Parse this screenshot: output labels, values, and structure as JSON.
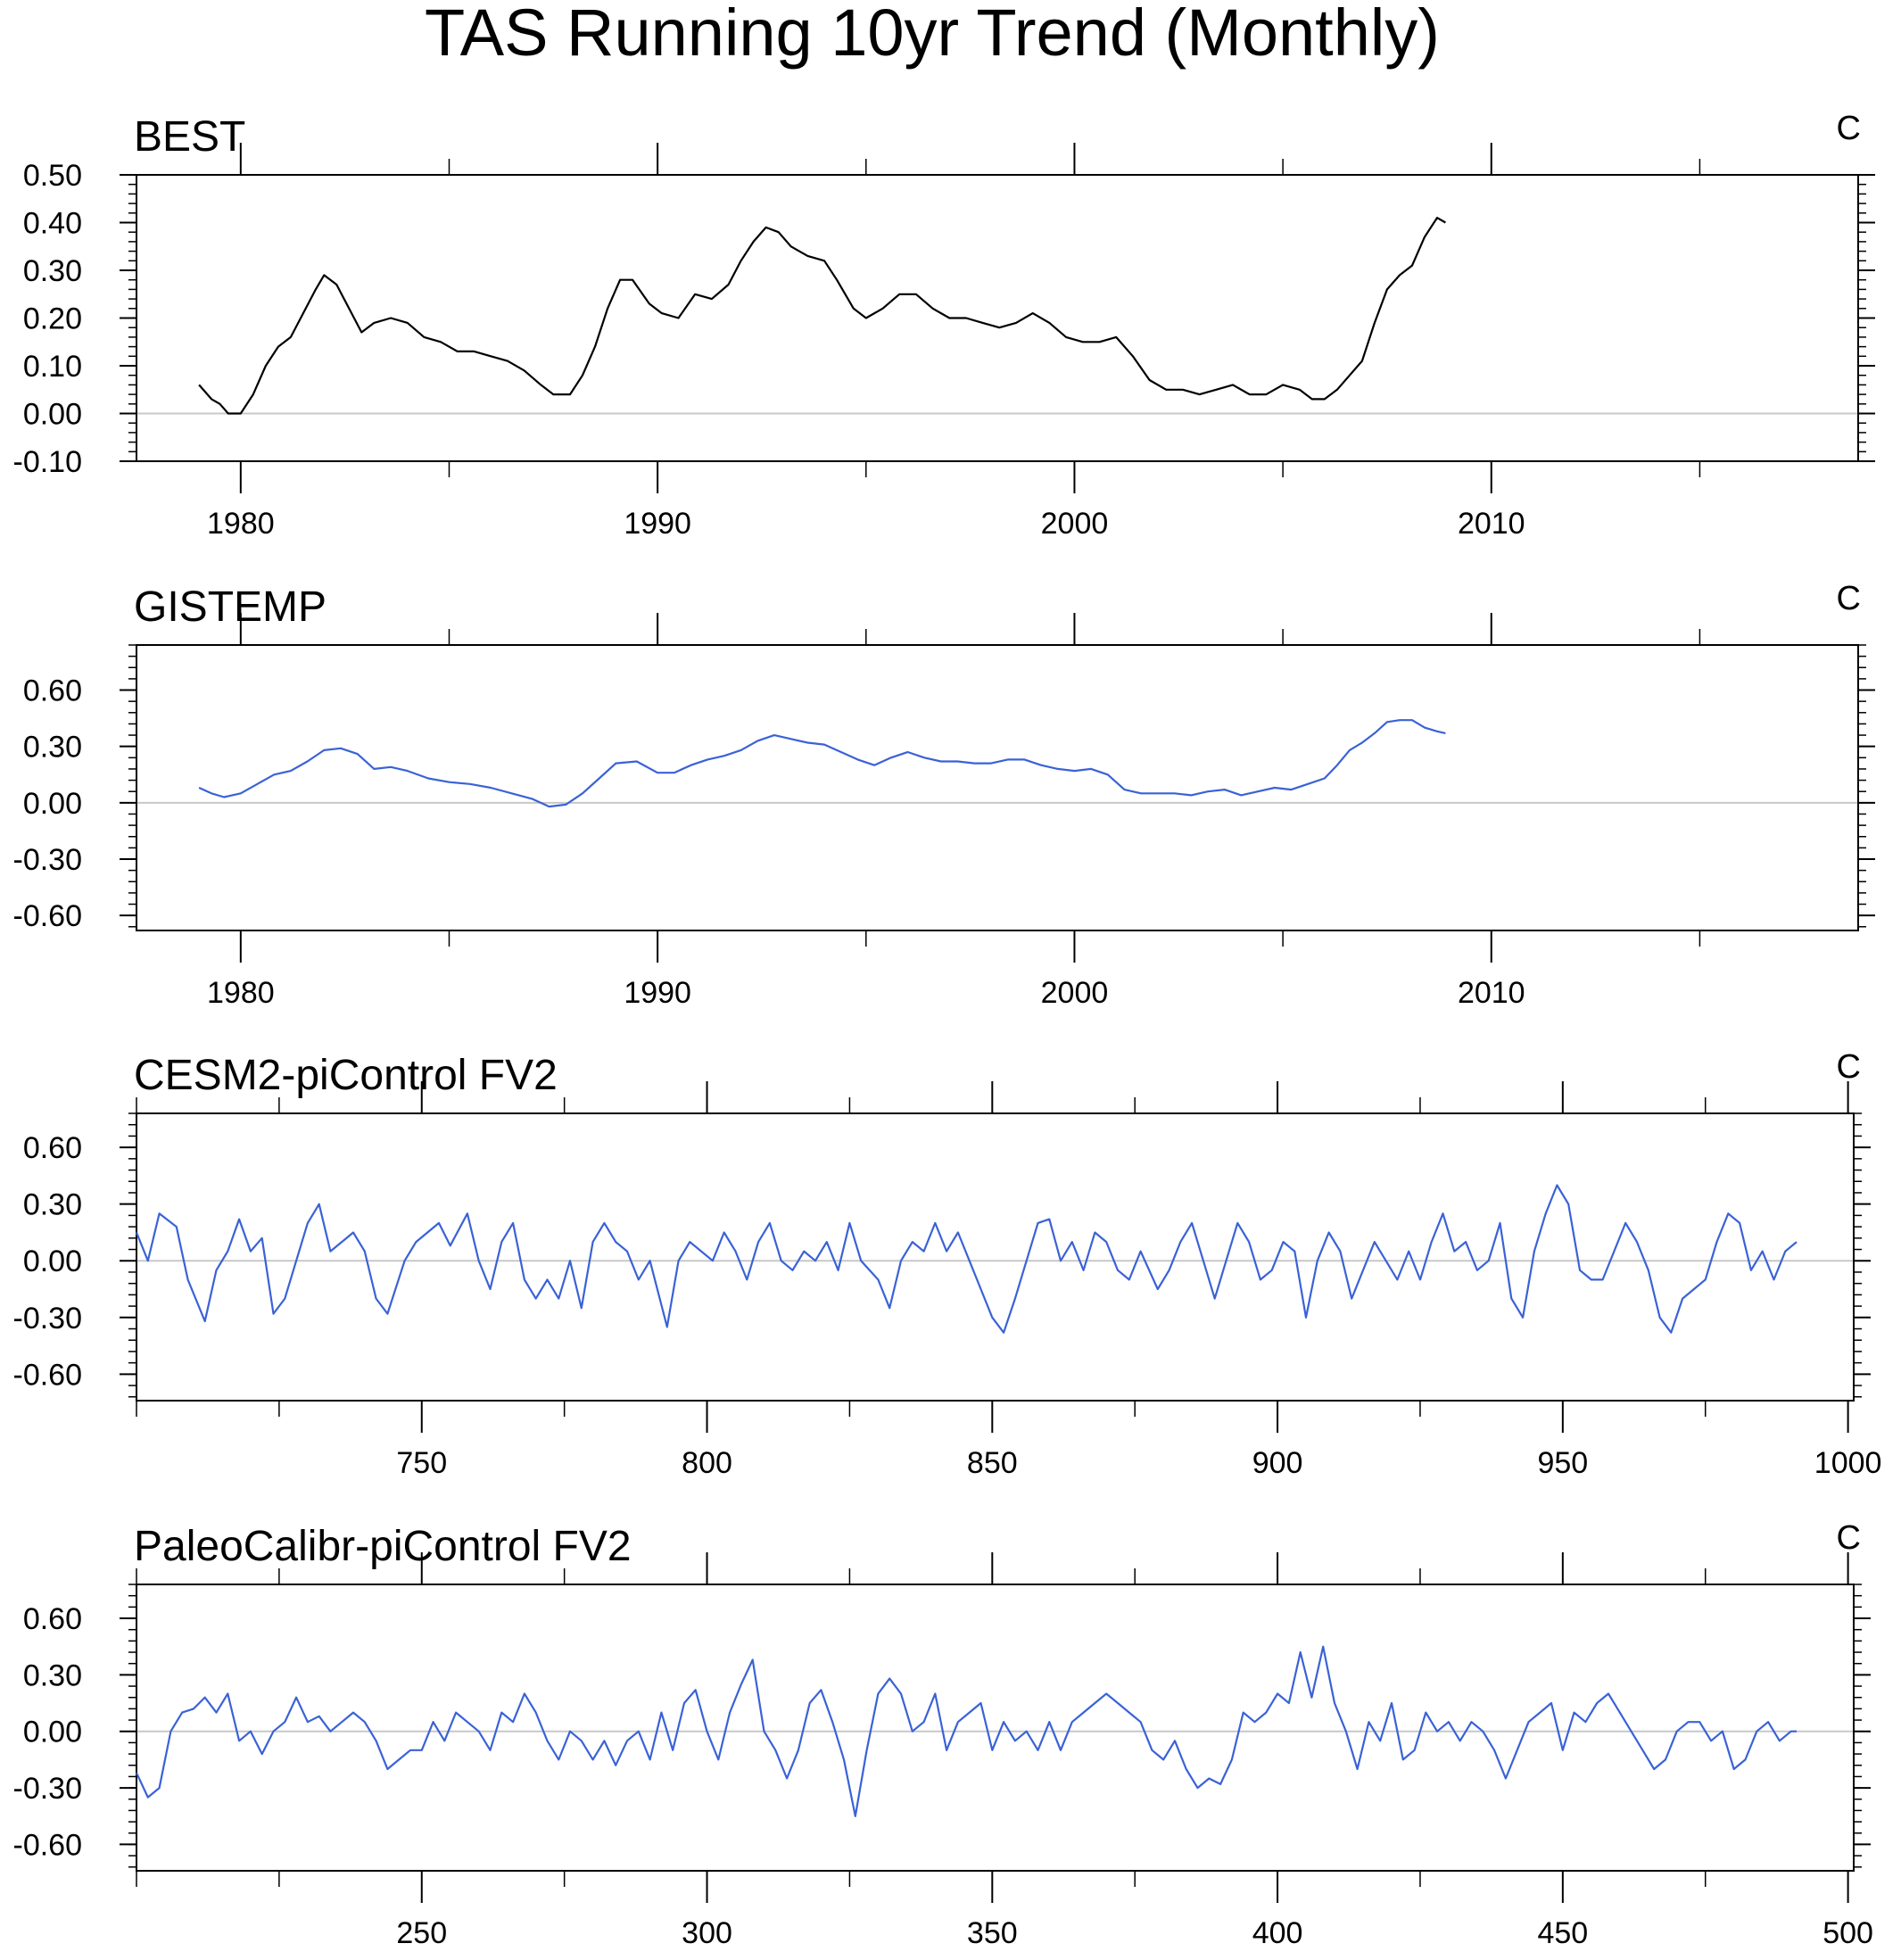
{
  "figure": {
    "title": "TAS Running 10yr Trend (Monthly)"
  },
  "chart_data": [
    {
      "type": "line",
      "title": "BEST",
      "units": "C",
      "color": "#000000",
      "xlim": [
        1977.5,
        2018.8
      ],
      "ylim": [
        -0.1,
        0.5
      ],
      "yticks": [
        -0.1,
        0.0,
        0.1,
        0.2,
        0.3,
        0.4,
        0.5
      ],
      "ytick_labels": [
        "-0.10",
        "0.00",
        "0.10",
        "0.20",
        "0.30",
        "0.40",
        "0.50"
      ],
      "xticks": [
        1980,
        1990,
        2000,
        2010
      ],
      "xtick_labels": [
        "1980",
        "1990",
        "2000",
        "2010"
      ],
      "x": [
        1979.0,
        1979.3,
        1979.5,
        1979.7,
        1980.0,
        1980.3,
        1980.6,
        1980.9,
        1981.2,
        1981.5,
        1981.8,
        1982.0,
        1982.3,
        1982.6,
        1982.9,
        1983.2,
        1983.6,
        1984.0,
        1984.4,
        1984.8,
        1985.2,
        1985.6,
        1986.0,
        1986.4,
        1986.8,
        1987.2,
        1987.5,
        1987.9,
        1988.2,
        1988.5,
        1988.8,
        1989.1,
        1989.4,
        1989.8,
        1990.1,
        1990.5,
        1990.9,
        1991.3,
        1991.7,
        1992.0,
        1992.3,
        1992.6,
        1992.9,
        1993.2,
        1993.6,
        1994.0,
        1994.3,
        1994.7,
        1995.0,
        1995.4,
        1995.8,
        1996.2,
        1996.6,
        1997.0,
        1997.4,
        1997.8,
        1998.2,
        1998.6,
        1999.0,
        1999.4,
        1999.8,
        2000.2,
        2000.6,
        2001.0,
        2001.4,
        2001.8,
        2002.2,
        2002.6,
        2003.0,
        2003.4,
        2003.8,
        2004.2,
        2004.6,
        2005.0,
        2005.4,
        2005.7,
        2006.0,
        2006.3,
        2006.6,
        2006.9,
        2007.2,
        2007.5,
        2007.8,
        2008.1,
        2008.4,
        2008.7,
        2008.9
      ],
      "y": [
        0.06,
        0.03,
        0.02,
        0.0,
        0.0,
        0.04,
        0.1,
        0.14,
        0.16,
        0.21,
        0.26,
        0.29,
        0.27,
        0.22,
        0.17,
        0.19,
        0.2,
        0.19,
        0.16,
        0.15,
        0.13,
        0.13,
        0.12,
        0.11,
        0.09,
        0.06,
        0.04,
        0.04,
        0.08,
        0.14,
        0.22,
        0.28,
        0.28,
        0.23,
        0.21,
        0.2,
        0.25,
        0.24,
        0.27,
        0.32,
        0.36,
        0.39,
        0.38,
        0.35,
        0.33,
        0.32,
        0.28,
        0.22,
        0.2,
        0.22,
        0.25,
        0.25,
        0.22,
        0.2,
        0.2,
        0.19,
        0.18,
        0.19,
        0.21,
        0.19,
        0.16,
        0.15,
        0.15,
        0.16,
        0.12,
        0.07,
        0.05,
        0.05,
        0.04,
        0.05,
        0.06,
        0.04,
        0.04,
        0.06,
        0.05,
        0.03,
        0.03,
        0.05,
        0.08,
        0.11,
        0.19,
        0.26,
        0.29,
        0.31,
        0.37,
        0.41,
        0.4
      ]
    },
    {
      "type": "line",
      "title": "GISTEMP",
      "units": "C",
      "color": "#3a62d6",
      "xlim": [
        1977.5,
        2018.8
      ],
      "ylim": [
        -0.68,
        0.84
      ],
      "yticks": [
        -0.6,
        -0.3,
        0.0,
        0.3,
        0.6
      ],
      "ytick_labels": [
        "-0.60",
        "-0.30",
        "0.00",
        "0.30",
        "0.60"
      ],
      "xticks": [
        1980,
        1990,
        2000,
        2010
      ],
      "xtick_labels": [
        "1980",
        "1990",
        "2000",
        "2010"
      ],
      "x": [
        1979.0,
        1979.3,
        1979.6,
        1980.0,
        1980.4,
        1980.8,
        1981.2,
        1981.6,
        1982.0,
        1982.4,
        1982.8,
        1983.2,
        1983.6,
        1984.0,
        1984.5,
        1985.0,
        1985.5,
        1986.0,
        1986.5,
        1987.0,
        1987.4,
        1987.8,
        1988.2,
        1988.6,
        1989.0,
        1989.5,
        1990.0,
        1990.4,
        1990.8,
        1991.2,
        1991.6,
        1992.0,
        1992.4,
        1992.8,
        1993.2,
        1993.6,
        1994.0,
        1994.4,
        1994.8,
        1995.2,
        1995.6,
        1996.0,
        1996.4,
        1996.8,
        1997.2,
        1997.6,
        1998.0,
        1998.4,
        1998.8,
        1999.2,
        1999.6,
        2000.0,
        2000.4,
        2000.8,
        2001.2,
        2001.6,
        2002.0,
        2002.4,
        2002.8,
        2003.2,
        2003.6,
        2004.0,
        2004.4,
        2004.8,
        2005.2,
        2005.6,
        2006.0,
        2006.3,
        2006.6,
        2006.9,
        2007.2,
        2007.5,
        2007.8,
        2008.1,
        2008.4,
        2008.7,
        2008.9
      ],
      "y": [
        0.08,
        0.05,
        0.03,
        0.05,
        0.1,
        0.15,
        0.17,
        0.22,
        0.28,
        0.29,
        0.26,
        0.18,
        0.19,
        0.17,
        0.13,
        0.11,
        0.1,
        0.08,
        0.05,
        0.02,
        -0.02,
        -0.01,
        0.05,
        0.13,
        0.21,
        0.22,
        0.16,
        0.16,
        0.2,
        0.23,
        0.25,
        0.28,
        0.33,
        0.36,
        0.34,
        0.32,
        0.31,
        0.27,
        0.23,
        0.2,
        0.24,
        0.27,
        0.24,
        0.22,
        0.22,
        0.21,
        0.21,
        0.23,
        0.23,
        0.2,
        0.18,
        0.17,
        0.18,
        0.15,
        0.07,
        0.05,
        0.05,
        0.05,
        0.04,
        0.06,
        0.07,
        0.04,
        0.06,
        0.08,
        0.07,
        0.1,
        0.13,
        0.2,
        0.28,
        0.32,
        0.37,
        0.43,
        0.44,
        0.44,
        0.4,
        0.38,
        0.37
      ]
    },
    {
      "type": "line",
      "title": "CESM2-piControl FV2",
      "units": "C",
      "color": "#3a62d6",
      "xlim": [
        700,
        1001
      ],
      "ylim": [
        -0.74,
        0.78
      ],
      "yticks": [
        -0.6,
        -0.3,
        0.0,
        0.3,
        0.6
      ],
      "ytick_labels": [
        "-0.60",
        "-0.30",
        "0.00",
        "0.30",
        "0.60"
      ],
      "xticks": [
        750,
        800,
        850,
        900,
        950,
        1000
      ],
      "xtick_labels": [
        "750",
        "800",
        "850",
        "900",
        "950",
        "1000"
      ],
      "x": [
        700,
        702,
        704,
        707,
        709,
        712,
        714,
        716,
        718,
        720,
        722,
        724,
        726,
        728,
        730,
        732,
        734,
        736,
        738,
        740,
        742,
        744,
        747,
        749,
        751,
        753,
        755,
        758,
        760,
        762,
        764,
        766,
        768,
        770,
        772,
        774,
        776,
        778,
        780,
        782,
        784,
        786,
        788,
        790,
        793,
        795,
        797,
        799,
        801,
        803,
        805,
        807,
        809,
        811,
        813,
        815,
        817,
        819,
        821,
        823,
        825,
        827,
        830,
        832,
        834,
        836,
        838,
        840,
        842,
        844,
        846,
        848,
        850,
        852,
        854,
        856,
        858,
        860,
        862,
        864,
        866,
        868,
        870,
        872,
        874,
        876,
        879,
        881,
        883,
        885,
        887,
        889,
        891,
        893,
        895,
        897,
        899,
        901,
        903,
        905,
        907,
        909,
        911,
        913,
        915,
        917,
        919,
        921,
        923,
        925,
        927,
        929,
        931,
        933,
        935,
        937,
        939,
        941,
        943,
        945,
        947,
        949,
        951,
        953,
        955,
        957,
        959,
        961,
        963,
        965,
        967,
        969,
        971,
        973,
        975,
        977,
        979,
        981,
        983,
        985,
        987,
        989,
        991
      ],
      "y": [
        0.15,
        0.0,
        0.25,
        0.18,
        -0.1,
        -0.32,
        -0.05,
        0.05,
        0.22,
        0.05,
        0.12,
        -0.28,
        -0.2,
        0.0,
        0.2,
        0.3,
        0.05,
        0.1,
        0.15,
        0.05,
        -0.2,
        -0.28,
        0.0,
        0.1,
        0.15,
        0.2,
        0.08,
        0.25,
        0.0,
        -0.15,
        0.1,
        0.2,
        -0.1,
        -0.2,
        -0.1,
        -0.2,
        0.0,
        -0.25,
        0.1,
        0.2,
        0.1,
        0.05,
        -0.1,
        0.0,
        -0.35,
        0.0,
        0.1,
        0.05,
        0.0,
        0.15,
        0.05,
        -0.1,
        0.1,
        0.2,
        0.0,
        -0.05,
        0.05,
        0.0,
        0.1,
        -0.05,
        0.2,
        0.0,
        -0.1,
        -0.25,
        0.0,
        0.1,
        0.05,
        0.2,
        0.05,
        0.15,
        0.0,
        -0.15,
        -0.3,
        -0.38,
        -0.2,
        0.0,
        0.2,
        0.22,
        0.0,
        0.1,
        -0.05,
        0.15,
        0.1,
        -0.05,
        -0.1,
        0.05,
        -0.15,
        -0.05,
        0.1,
        0.2,
        0.0,
        -0.2,
        0.0,
        0.2,
        0.1,
        -0.1,
        -0.05,
        0.1,
        0.05,
        -0.3,
        0.0,
        0.15,
        0.05,
        -0.2,
        -0.05,
        0.1,
        0.0,
        -0.1,
        0.05,
        -0.1,
        0.1,
        0.25,
        0.05,
        0.1,
        -0.05,
        0.0,
        0.2,
        -0.2,
        -0.3,
        0.05,
        0.25,
        0.4,
        0.3,
        -0.05,
        -0.1,
        -0.1,
        0.05,
        0.2,
        0.1,
        -0.05,
        -0.3,
        -0.38,
        -0.2,
        -0.15,
        -0.1,
        0.1,
        0.25,
        0.2,
        -0.05,
        0.05,
        -0.1,
        0.05,
        0.1
      ]
    },
    {
      "type": "line",
      "title": "PaleoCalibr-piControl FV2",
      "units": "C",
      "color": "#3a62d6",
      "xlim": [
        200,
        501
      ],
      "ylim": [
        -0.74,
        0.78
      ],
      "yticks": [
        -0.6,
        -0.3,
        0.0,
        0.3,
        0.6
      ],
      "ytick_labels": [
        "-0.60",
        "-0.30",
        "0.00",
        "0.30",
        "0.60"
      ],
      "xticks": [
        250,
        300,
        350,
        400,
        450,
        500
      ],
      "xtick_labels": [
        "250",
        "300",
        "350",
        "400",
        "450",
        "500"
      ],
      "x": [
        200,
        202,
        204,
        206,
        208,
        210,
        212,
        214,
        216,
        218,
        220,
        222,
        224,
        226,
        228,
        230,
        232,
        234,
        236,
        238,
        240,
        242,
        244,
        246,
        248,
        250,
        252,
        254,
        256,
        258,
        260,
        262,
        264,
        266,
        268,
        270,
        272,
        274,
        276,
        278,
        280,
        282,
        284,
        286,
        288,
        290,
        292,
        294,
        296,
        298,
        300,
        302,
        304,
        306,
        308,
        310,
        312,
        314,
        316,
        318,
        320,
        322,
        324,
        326,
        328,
        330,
        332,
        334,
        336,
        338,
        340,
        342,
        344,
        346,
        348,
        350,
        352,
        354,
        356,
        358,
        360,
        362,
        364,
        366,
        368,
        370,
        372,
        374,
        376,
        378,
        380,
        382,
        384,
        386,
        388,
        390,
        392,
        394,
        396,
        398,
        400,
        402,
        404,
        406,
        408,
        410,
        412,
        414,
        416,
        418,
        420,
        422,
        424,
        426,
        428,
        430,
        432,
        434,
        436,
        438,
        440,
        442,
        444,
        446,
        448,
        450,
        452,
        454,
        456,
        458,
        460,
        462,
        464,
        466,
        468,
        470,
        472,
        474,
        476,
        478,
        480,
        482,
        484,
        486,
        488,
        490,
        491
      ],
      "y": [
        -0.22,
        -0.35,
        -0.3,
        0.0,
        0.1,
        0.12,
        0.18,
        0.1,
        0.2,
        -0.05,
        0.0,
        -0.12,
        0.0,
        0.05,
        0.18,
        0.05,
        0.08,
        0.0,
        0.05,
        0.1,
        0.05,
        -0.05,
        -0.2,
        -0.15,
        -0.1,
        -0.1,
        0.05,
        -0.05,
        0.1,
        0.05,
        0.0,
        -0.1,
        0.1,
        0.05,
        0.2,
        0.1,
        -0.05,
        -0.15,
        0.0,
        -0.05,
        -0.15,
        -0.05,
        -0.18,
        -0.05,
        0.0,
        -0.15,
        0.1,
        -0.1,
        0.15,
        0.22,
        0.0,
        -0.15,
        0.1,
        0.25,
        0.38,
        0.0,
        -0.1,
        -0.25,
        -0.1,
        0.15,
        0.22,
        0.05,
        -0.15,
        -0.45,
        -0.1,
        0.2,
        0.28,
        0.2,
        0.0,
        0.05,
        0.2,
        -0.1,
        0.05,
        0.1,
        0.15,
        -0.1,
        0.05,
        -0.05,
        0.0,
        -0.1,
        0.05,
        -0.1,
        0.05,
        0.1,
        0.15,
        0.2,
        0.15,
        0.1,
        0.05,
        -0.1,
        -0.15,
        -0.05,
        -0.2,
        -0.3,
        -0.25,
        -0.28,
        -0.15,
        0.1,
        0.05,
        0.1,
        0.2,
        0.15,
        0.42,
        0.18,
        0.45,
        0.15,
        0.0,
        -0.2,
        0.05,
        -0.05,
        0.15,
        -0.15,
        -0.1,
        0.1,
        0.0,
        0.05,
        -0.05,
        0.05,
        0.0,
        -0.1,
        -0.25,
        -0.1,
        0.05,
        0.1,
        0.15,
        -0.1,
        0.1,
        0.05,
        0.15,
        0.2,
        0.1,
        0.0,
        -0.1,
        -0.2,
        -0.15,
        0.0,
        0.05,
        0.05,
        -0.05,
        0.0,
        -0.2,
        -0.15,
        0.0,
        0.05,
        -0.05,
        0.0,
        0.0
      ]
    }
  ]
}
